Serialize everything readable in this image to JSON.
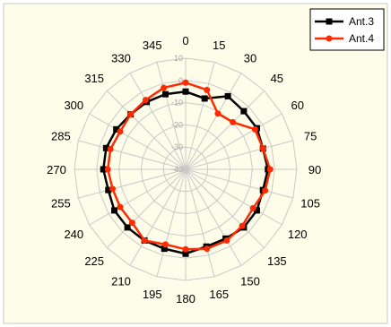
{
  "chart_data": {
    "type": "radar",
    "angles": [
      "0",
      "15",
      "30",
      "45",
      "60",
      "75",
      "90",
      "105",
      "120",
      "135",
      "150",
      "165",
      "180",
      "195",
      "210",
      "225",
      "240",
      "255",
      "270",
      "285",
      "300",
      "315",
      "330",
      "345"
    ],
    "r_ticks": [
      "10",
      "0",
      "-10",
      "-20",
      "-30",
      "-40"
    ],
    "r_range": [
      -40,
      10
    ],
    "grid": true,
    "legend_position": "top-right",
    "series": [
      {
        "name": "Ant.3",
        "color": "#000000",
        "marker": "square",
        "values": [
          -5,
          -7,
          -2,
          -3,
          -3,
          -4,
          -3,
          -4,
          -3,
          -3,
          -4,
          -4,
          -2,
          -3,
          -3,
          -3,
          -3,
          -4,
          -3,
          -3,
          -4,
          -5,
          -5,
          -5
        ]
      },
      {
        "name": "Ant.4",
        "color": "#ff2a00",
        "marker": "circle",
        "values": [
          -1,
          -3,
          -11,
          -10,
          -4,
          -4,
          -2,
          -3,
          -5,
          -4,
          -3,
          -3,
          -4,
          -5,
          -3,
          -6,
          -6,
          -6,
          -5,
          -5,
          -6,
          -5,
          -4,
          -2
        ]
      }
    ]
  }
}
